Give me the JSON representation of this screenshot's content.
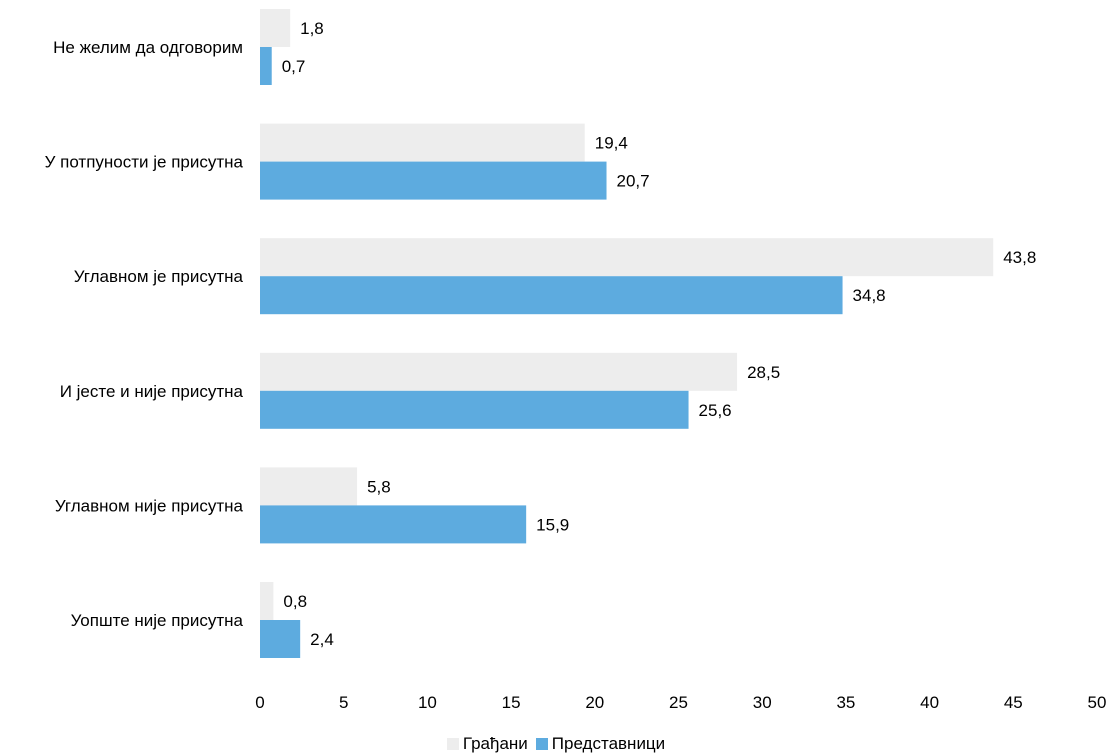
{
  "chart_data": {
    "type": "bar",
    "orientation": "horizontal",
    "categories": [
      "Не желим да одговорим",
      "У потпуности је присутна",
      "Углавном је присутна",
      "И јесте и није присутна",
      "Углавном није присутна",
      "Уопште није присутна"
    ],
    "series": [
      {
        "name": "Грађани",
        "color": "#ededed",
        "values": [
          1.8,
          19.4,
          43.8,
          28.5,
          5.8,
          0.8
        ],
        "labels": [
          "1,8",
          "19,4",
          "43,8",
          "28,5",
          "5,8",
          "0,8"
        ]
      },
      {
        "name": "Представници",
        "color": "#5dabdf",
        "values": [
          0.7,
          20.7,
          34.8,
          25.6,
          15.9,
          2.4
        ],
        "labels": [
          "0,7",
          "20,7",
          "34,8",
          "25,6",
          "15,9",
          "2,4"
        ]
      }
    ],
    "xlim": [
      0,
      50
    ],
    "xticks": [
      0,
      5,
      10,
      15,
      20,
      25,
      30,
      35,
      40,
      45,
      50
    ],
    "grid": false,
    "legend_position": "bottom"
  }
}
